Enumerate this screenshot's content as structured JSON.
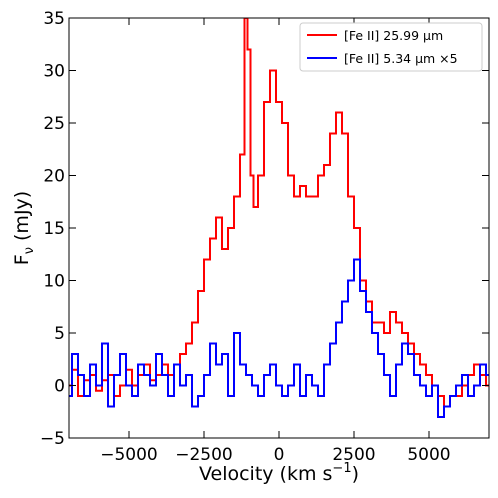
{
  "chart_data": {
    "type": "line",
    "title": "",
    "xlabel": "Velocity (km s",
    "xlabel_sup": "−1",
    "xlabel_close": ")",
    "ylabel": "F",
    "ylabel_sub": "ν",
    "ylabel_unit": " (mJy)",
    "xlim": [
      -7000,
      7000
    ],
    "ylim": [
      -5,
      35
    ],
    "xticks": [
      -5000,
      -2500,
      0,
      2500,
      5000
    ],
    "xtick_labels": [
      "−5000",
      "−2500",
      "0",
      "2500",
      "5000"
    ],
    "yticks": [
      -5,
      0,
      5,
      10,
      15,
      20,
      25,
      30,
      35
    ],
    "ytick_labels": [
      "−5",
      "0",
      "5",
      "10",
      "15",
      "20",
      "25",
      "30",
      "35"
    ],
    "grid": false,
    "legend_position": "top-right",
    "line_style": "steps-mid",
    "series": [
      {
        "name": "[Fe II] 25.99 μm",
        "color": "#ff0000",
        "x": [
          -7000,
          -6800,
          -6600,
          -6400,
          -6200,
          -6000,
          -5800,
          -5600,
          -5400,
          -5200,
          -5000,
          -4800,
          -4600,
          -4400,
          -4200,
          -4000,
          -3800,
          -3600,
          -3400,
          -3200,
          -3000,
          -2800,
          -2600,
          -2400,
          -2200,
          -2000,
          -1800,
          -1600,
          -1400,
          -1200,
          -1100,
          -1000,
          -900,
          -800,
          -600,
          -400,
          -200,
          0,
          200,
          400,
          600,
          800,
          1000,
          1200,
          1400,
          1600,
          1800,
          2000,
          2200,
          2400,
          2600,
          2800,
          3000,
          3200,
          3400,
          3600,
          3800,
          4000,
          4200,
          4400,
          4600,
          4800,
          5000,
          5200,
          5400,
          5600,
          5800,
          6000,
          6200,
          6400,
          6600,
          6800,
          7000
        ],
        "y": [
          0,
          1.5,
          -1,
          0.5,
          1,
          -0.5,
          0.5,
          1,
          -1,
          0,
          1.5,
          0,
          1,
          2,
          0.5,
          1,
          2,
          1,
          2,
          3,
          4,
          6,
          9,
          12,
          14,
          16,
          13,
          15,
          18,
          22,
          35,
          32,
          20,
          17,
          20,
          27,
          30,
          27,
          25,
          20,
          18,
          19,
          18,
          18,
          20,
          21,
          24,
          26,
          24,
          18,
          15,
          10,
          8,
          6,
          6,
          5,
          7,
          6,
          5,
          4,
          3,
          2,
          1,
          0,
          -1,
          -2,
          -1,
          -1,
          0,
          1,
          2,
          1,
          0
        ],
        "visible_ylim_clip": true
      },
      {
        "name": "[Fe II] 5.34 μm ×5",
        "color": "#0000ff",
        "x": [
          -7000,
          -6800,
          -6600,
          -6400,
          -6200,
          -6000,
          -5800,
          -5600,
          -5400,
          -5200,
          -5000,
          -4800,
          -4600,
          -4400,
          -4200,
          -4000,
          -3800,
          -3600,
          -3400,
          -3200,
          -3000,
          -2800,
          -2600,
          -2400,
          -2200,
          -2000,
          -1800,
          -1600,
          -1400,
          -1200,
          -1000,
          -800,
          -600,
          -400,
          -200,
          0,
          200,
          400,
          600,
          800,
          1000,
          1200,
          1400,
          1600,
          1800,
          2000,
          2200,
          2400,
          2600,
          2800,
          3000,
          3200,
          3400,
          3600,
          3800,
          4000,
          4200,
          4400,
          4600,
          4800,
          5000,
          5200,
          5400,
          5600,
          5800,
          6000,
          6200,
          6400,
          6600,
          6800,
          7000
        ],
        "y": [
          -1,
          3,
          1,
          -1,
          2,
          0,
          4,
          -2,
          1,
          3,
          0,
          -1,
          2,
          1,
          0,
          3,
          1,
          -1,
          2,
          0,
          1,
          -2,
          -1,
          1,
          4,
          2,
          3,
          -1,
          5,
          2,
          1,
          0,
          -1,
          1,
          2,
          0,
          -1,
          0,
          2,
          -1,
          1,
          0,
          -1,
          2,
          4,
          6,
          8,
          10,
          12,
          9,
          7,
          5,
          3,
          1,
          -1,
          2,
          4,
          3,
          1,
          0,
          -1,
          0,
          -3,
          -2,
          -1,
          0,
          1,
          -1,
          0,
          2,
          1
        ]
      }
    ],
    "legend": {
      "entries": [
        "[Fe II] 25.99 μm",
        "[Fe II] 5.34 μm ×5"
      ]
    }
  }
}
